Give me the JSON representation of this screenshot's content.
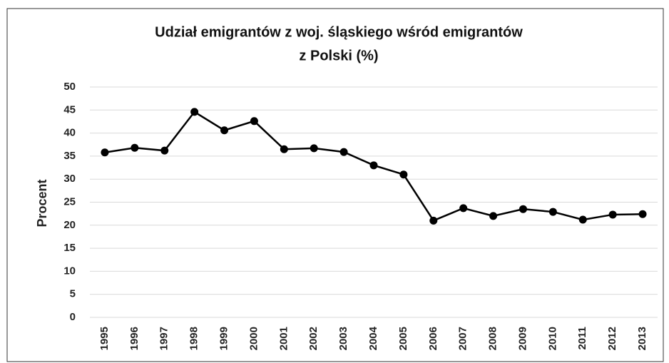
{
  "chart_data": {
    "type": "line",
    "title": [
      "Udział emigrantów z woj. śląskiego wśród emigrantów",
      "z Polski (%)"
    ],
    "y_label": "Procent",
    "categories": [
      "1995",
      "1996",
      "1997",
      "1998",
      "1999",
      "2000",
      "2001",
      "2002",
      "2003",
      "2004",
      "2005",
      "2006",
      "2007",
      "2008",
      "2009",
      "2010",
      "2011",
      "2012",
      "2013"
    ],
    "series": [
      {
        "name": "Udział",
        "color": "#000000",
        "values": [
          35.8,
          36.8,
          36.2,
          44.6,
          40.6,
          42.6,
          36.5,
          36.7,
          35.9,
          33.0,
          31.0,
          21.0,
          23.7,
          22.0,
          23.5,
          22.9,
          21.2,
          22.3,
          22.4
        ]
      }
    ],
    "ylim": [
      0,
      50
    ],
    "yticks": [
      0,
      5,
      10,
      15,
      20,
      25,
      30,
      35,
      40,
      45,
      50
    ],
    "grid": true
  }
}
